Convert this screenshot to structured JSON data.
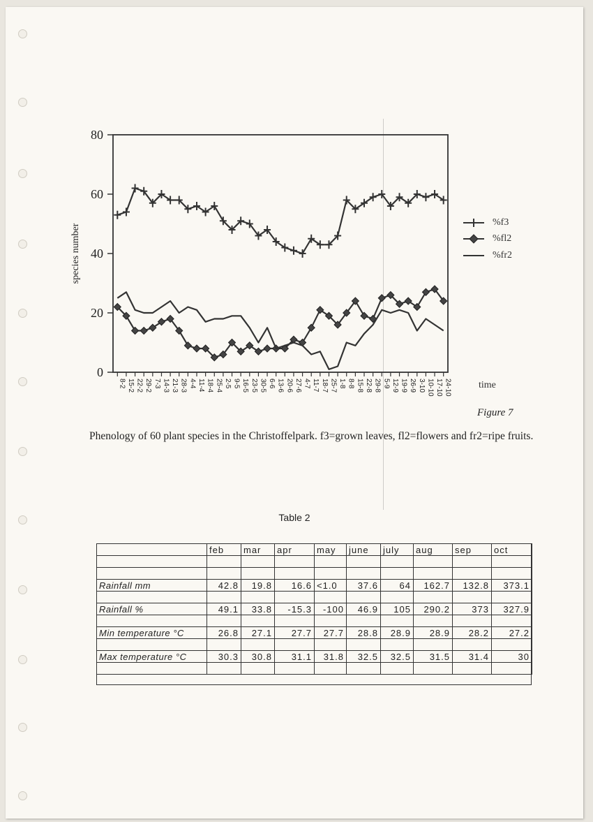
{
  "figure": {
    "ylabel": "species number",
    "xlabel": "time",
    "figure_label": "Figure 7",
    "caption": "Phenology of 60 plant species in the Christoffelpark.  f3=grown leaves, fl2=flowers and fr2=ripe fruits."
  },
  "chart_data": {
    "type": "line",
    "x": [
      "8-2",
      "15-2",
      "22-2",
      "29-2",
      "7-3",
      "14-3",
      "21-3",
      "28-3",
      "4-4",
      "11-4",
      "18-4",
      "25-4",
      "2-5",
      "9-5",
      "16-5",
      "23-5",
      "30-5",
      "6-6",
      "13-6",
      "20-6",
      "27-6",
      "4-7",
      "11-7",
      "18-7",
      "25-7",
      "1-8",
      "8-8",
      "15-8",
      "22-8",
      "29-8",
      "5-9",
      "12-9",
      "19-9",
      "26-9",
      "3-10",
      "10-10",
      "17-10",
      "24-10"
    ],
    "ylim": [
      0,
      80
    ],
    "yticks": [
      0,
      20,
      40,
      60,
      80
    ],
    "ylabel": "species number",
    "xlabel": "time",
    "legend_position": "right",
    "series": [
      {
        "name": "%f3",
        "marker": "plus",
        "values": [
          53,
          54,
          62,
          61,
          57,
          60,
          58,
          58,
          55,
          56,
          54,
          56,
          51,
          48,
          51,
          50,
          46,
          48,
          44,
          42,
          41,
          40,
          45,
          43,
          43,
          46,
          58,
          55,
          57,
          59,
          60,
          56,
          59,
          57,
          60,
          59,
          60,
          58
        ]
      },
      {
        "name": "%fl2",
        "marker": "diamond",
        "values": [
          22,
          19,
          14,
          14,
          15,
          17,
          18,
          14,
          9,
          8,
          8,
          5,
          6,
          10,
          7,
          9,
          7,
          8,
          8,
          8,
          11,
          10,
          15,
          21,
          19,
          16,
          20,
          24,
          19,
          18,
          25,
          26,
          23,
          24,
          22,
          27,
          28,
          24
        ]
      },
      {
        "name": "%fr2",
        "marker": "none",
        "values": [
          25,
          27,
          21,
          20,
          20,
          22,
          24,
          20,
          22,
          21,
          17,
          18,
          18,
          19,
          19,
          15,
          10,
          15,
          8,
          9,
          10,
          9,
          6,
          7,
          1,
          2,
          10,
          9,
          13,
          16,
          21,
          20,
          21,
          20,
          14,
          18,
          16,
          14
        ]
      }
    ]
  },
  "table": {
    "title": "Table 2",
    "columns": [
      "feb",
      "mar",
      "apr",
      "may",
      "june",
      "july",
      "aug",
      "sep",
      "oct"
    ],
    "rows": [
      {
        "label": "Rainfall  mm",
        "values": [
          "42.8",
          "19.8",
          "16.6",
          "<1.0",
          "37.6",
          "64",
          "162.7",
          "132.8",
          "373.1"
        ]
      },
      {
        "label": "Rainfall  %",
        "values": [
          "49.1",
          "33.8",
          "-15.3",
          "-100",
          "46.9",
          "105",
          "290.2",
          "373",
          "327.9"
        ]
      },
      {
        "label": "Min temperature   °C",
        "values": [
          "26.8",
          "27.1",
          "27.7",
          "27.7",
          "28.8",
          "28.9",
          "28.9",
          "28.2",
          "27.2"
        ]
      },
      {
        "label": "Max temperature °C",
        "values": [
          "30.3",
          "30.8",
          "31.1",
          "31.8",
          "32.5",
          "32.5",
          "31.5",
          "31.4",
          "30"
        ]
      }
    ]
  },
  "colors": {
    "ink": "#333333",
    "paper": "#faf8f3"
  }
}
